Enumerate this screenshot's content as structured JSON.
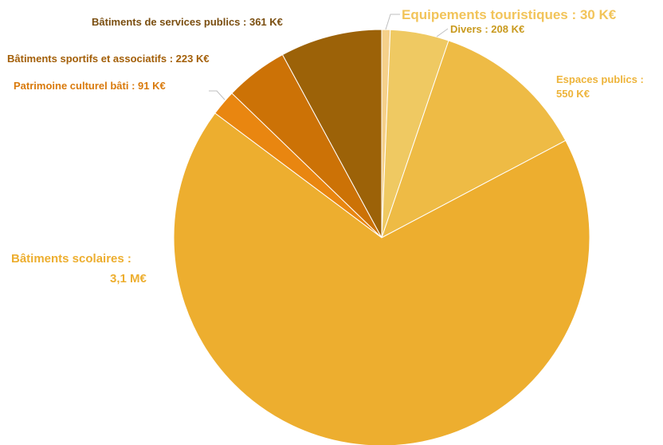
{
  "chart_data": {
    "type": "pie",
    "title": "",
    "unit": "K€",
    "slices": [
      {
        "label": "Equipements touristiques : 30 K€",
        "value": 30,
        "color": "#F5D08A",
        "label_color": "#F2C45A"
      },
      {
        "label": "Divers : 208 K€",
        "value": 208,
        "color": "#EFC962",
        "label_color": "#C99A1E"
      },
      {
        "label": "Espaces publics : 550 K€",
        "value": 550,
        "color": "#EEBB45",
        "label_color": "#EEB43A",
        "label_lines": [
          "Espaces publics :",
          "550 K€"
        ]
      },
      {
        "label": "Bâtiments scolaires : 3,1 M€",
        "value": 3100,
        "color": "#EDAE2F",
        "label_color": "#EDAE2F",
        "label_lines": [
          "Bâtiments scolaires :",
          "3,1 M€"
        ]
      },
      {
        "label": "Patrimoine culturel bâti : 91 K€",
        "value": 91,
        "color": "#E98610",
        "label_color": "#D97A0C"
      },
      {
        "label": "Bâtiments sportifs et associatifs : 223 K€",
        "value": 223,
        "color": "#CC7206",
        "label_color": "#A35F08"
      },
      {
        "label": "Bâtiments de services publics : 361 K€",
        "value": 361,
        "color": "#9C6208",
        "label_color": "#7A4E10"
      }
    ]
  }
}
